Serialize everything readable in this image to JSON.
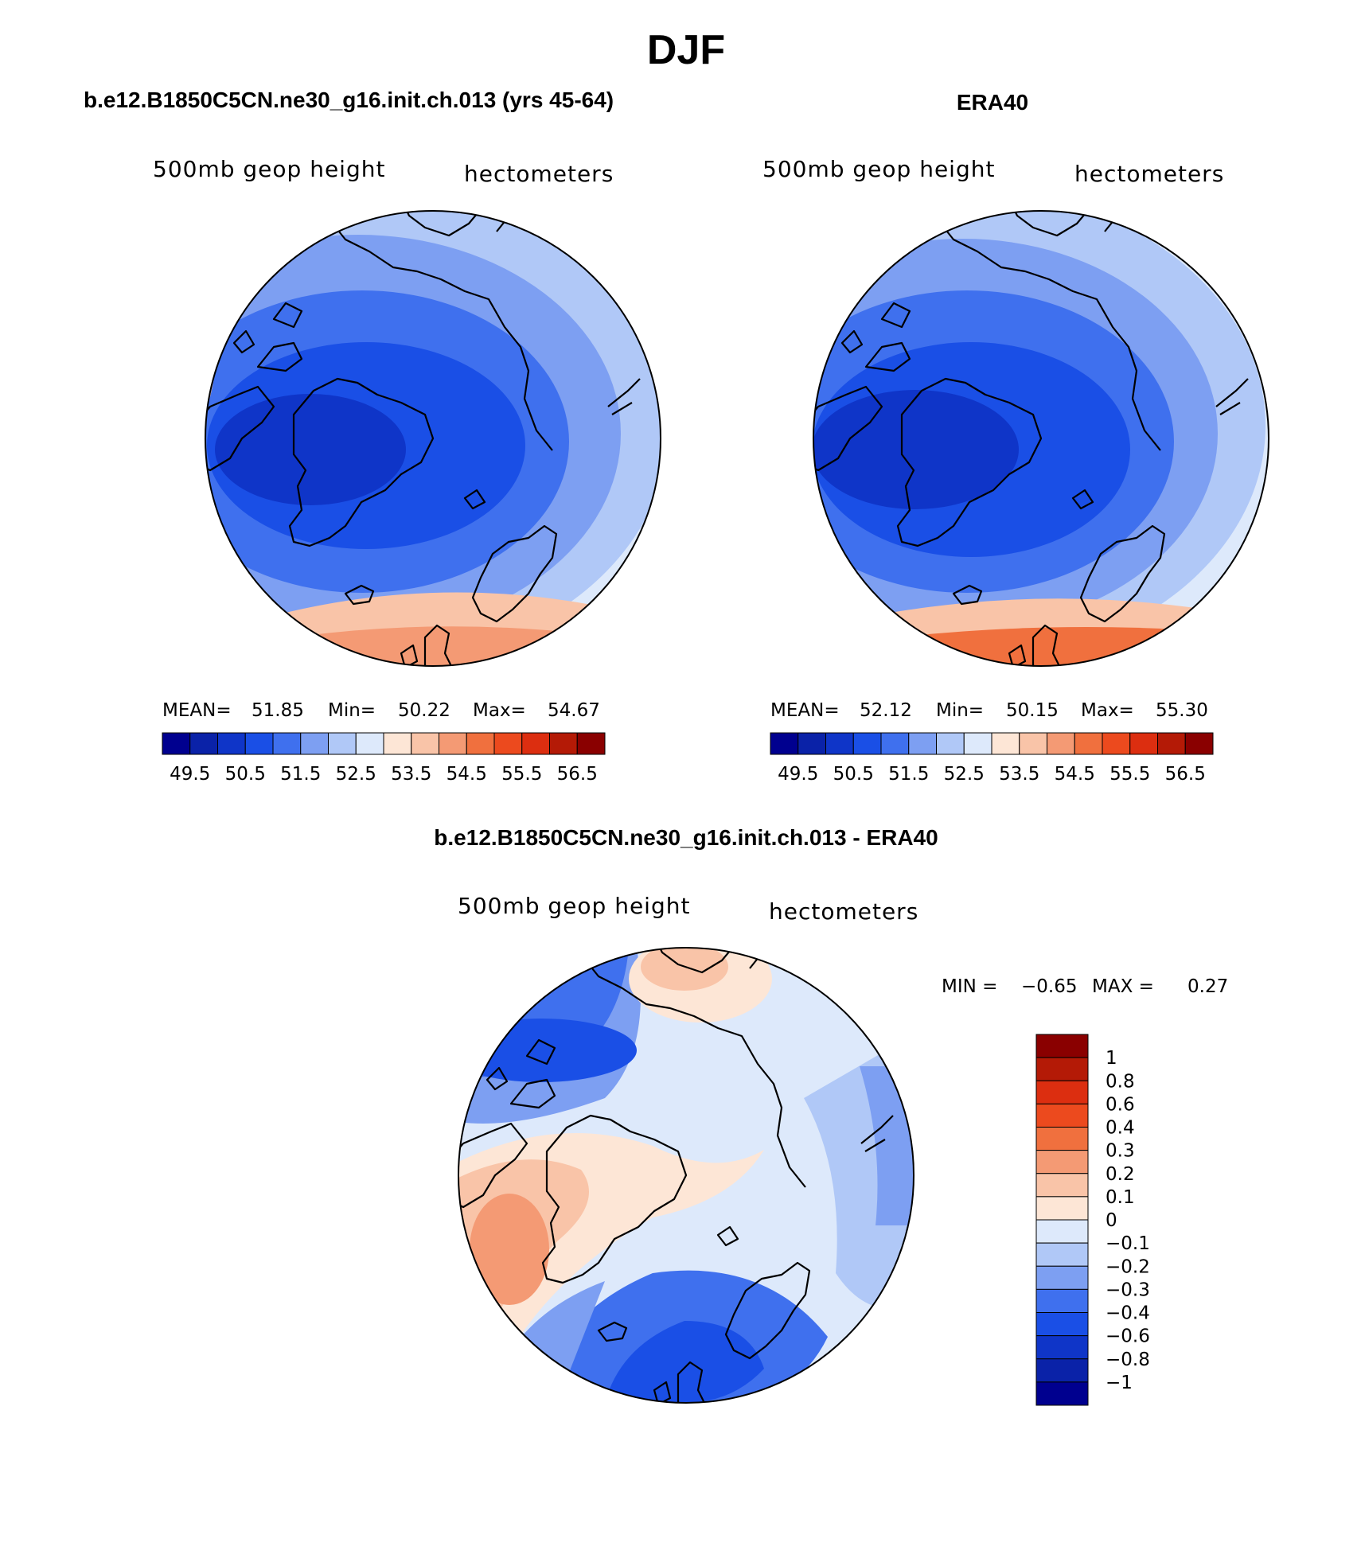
{
  "title": "DJF",
  "top_left": {
    "title": "b.e12.B1850C5CN.ne30_g16.init.ch.013 (yrs 45-64)",
    "left_label": "500mb geop height",
    "right_label": "hectometers",
    "stats": {
      "mean_label": "MEAN=",
      "mean": "51.85",
      "min_label": "Min=",
      "min": "50.22",
      "max_label": "Max=",
      "max": "54.67"
    }
  },
  "top_right": {
    "title": "ERA40",
    "left_label": "500mb geop height",
    "right_label": "hectometers",
    "stats": {
      "mean_label": "MEAN=",
      "mean": "52.12",
      "min_label": "Min=",
      "min": "50.15",
      "max_label": "Max=",
      "max": "55.30"
    }
  },
  "difference": {
    "title": "b.e12.B1850C5CN.ne30_g16.init.ch.013 - ERA40",
    "left_label": "500mb geop height",
    "right_label": "hectometers",
    "minmax": {
      "min_label": "MIN =",
      "min": "−0.65",
      "max_label": "MAX =",
      "max": "0.27"
    }
  },
  "colorbar_top": {
    "ticks": [
      "49.5",
      "50.5",
      "51.5",
      "52.5",
      "53.5",
      "54.5",
      "55.5",
      "56.5"
    ],
    "colors": [
      "#00008f",
      "#0a22a8",
      "#0f35c8",
      "#1a4fe6",
      "#3f70ee",
      "#7d9ff2",
      "#b0c8f7",
      "#dde9fb",
      "#fde6d6",
      "#f9c4a8",
      "#f49a74",
      "#f0703e",
      "#ec4a1e",
      "#dc2e10",
      "#b41a06",
      "#8a0000"
    ]
  },
  "colorbar_diff": {
    "labels": [
      "1",
      "0.8",
      "0.6",
      "0.4",
      "0.3",
      "0.2",
      "0.1",
      "0",
      "−0.1",
      "−0.2",
      "−0.3",
      "−0.4",
      "−0.6",
      "−0.8",
      "−1"
    ],
    "colors": [
      "#8a0000",
      "#b41a06",
      "#dc2e10",
      "#ec4a1e",
      "#f0703e",
      "#f49a74",
      "#f9c4a8",
      "#fde6d6",
      "#dde9fb",
      "#b0c8f7",
      "#7d9ff2",
      "#3f70ee",
      "#1a4fe6",
      "#0f35c8",
      "#0a22a8",
      "#00008f"
    ]
  }
}
